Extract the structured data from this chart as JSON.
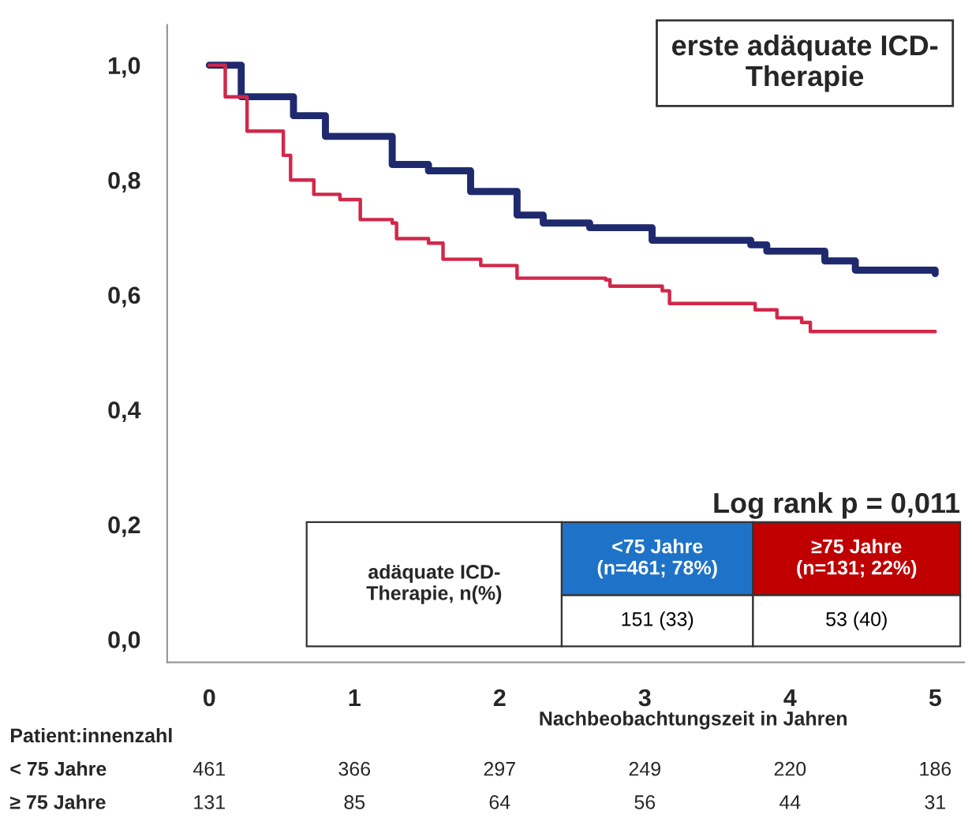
{
  "chart_data": {
    "type": "step",
    "title": "erste adäquate ICD-Therapie",
    "xlabel": "Nachbeobachtungszeit in Jahren",
    "series": [
      {
        "color": "#1f2a6e",
        "x": [
          0,
          0.22,
          0.58,
          0.8,
          1.26,
          1.51,
          1.8,
          2.12,
          2.3,
          2.62,
          3.05,
          3.73,
          3.84,
          4.24,
          4.45,
          5.0
        ],
        "values": [
          1.0,
          0.945,
          0.912,
          0.876,
          0.827,
          0.816,
          0.78,
          0.739,
          0.725,
          0.717,
          0.695,
          0.687,
          0.676,
          0.659,
          0.643,
          0.637
        ]
      },
      {
        "color": "#d0284a",
        "x": [
          0,
          0.11,
          0.26,
          0.51,
          0.56,
          0.72,
          0.9,
          1.04,
          1.26,
          1.29,
          1.51,
          1.61,
          1.87,
          2.12,
          2.73,
          2.76,
          3.12,
          3.17,
          3.71,
          3.76,
          3.91,
          4.08,
          4.14,
          5.0
        ],
        "values": [
          1.0,
          0.945,
          0.885,
          0.843,
          0.8,
          0.775,
          0.766,
          0.731,
          0.725,
          0.698,
          0.69,
          0.662,
          0.651,
          0.629,
          0.626,
          0.615,
          0.607,
          0.585,
          0.585,
          0.574,
          0.56,
          0.552,
          0.536,
          0.536
        ]
      }
    ],
    "xlim": [
      -0.29,
      5.2
    ],
    "ylim": [
      -0.04,
      1.07
    ],
    "xticks": [
      0,
      1,
      2,
      3,
      4,
      5
    ],
    "yticks": [
      {
        "value": 0.0,
        "label": "0,0"
      },
      {
        "value": 0.2,
        "label": "0,2"
      },
      {
        "value": 0.4,
        "label": "0,4"
      },
      {
        "value": 0.6,
        "label": "0,6"
      },
      {
        "value": 0.8,
        "label": "0,8"
      },
      {
        "value": 1.0,
        "label": "1,0"
      }
    ],
    "grid": false,
    "legend": false,
    "annotations": [
      "Log rank p = 0,011",
      "adäquate ICD-Therapie, n(%)",
      "<75 Jahre (n=461; 78%)",
      "≥75 Jahre (n=131; 22%)",
      "151 (33)",
      "53 (40)",
      "Patient:innenzahl",
      "< 75 Jahre",
      "461",
      "366",
      "297",
      "249",
      "220",
      "186",
      "≥ 75 Jahre",
      "131",
      "85",
      "64",
      "56",
      "44",
      "31"
    ]
  }
}
